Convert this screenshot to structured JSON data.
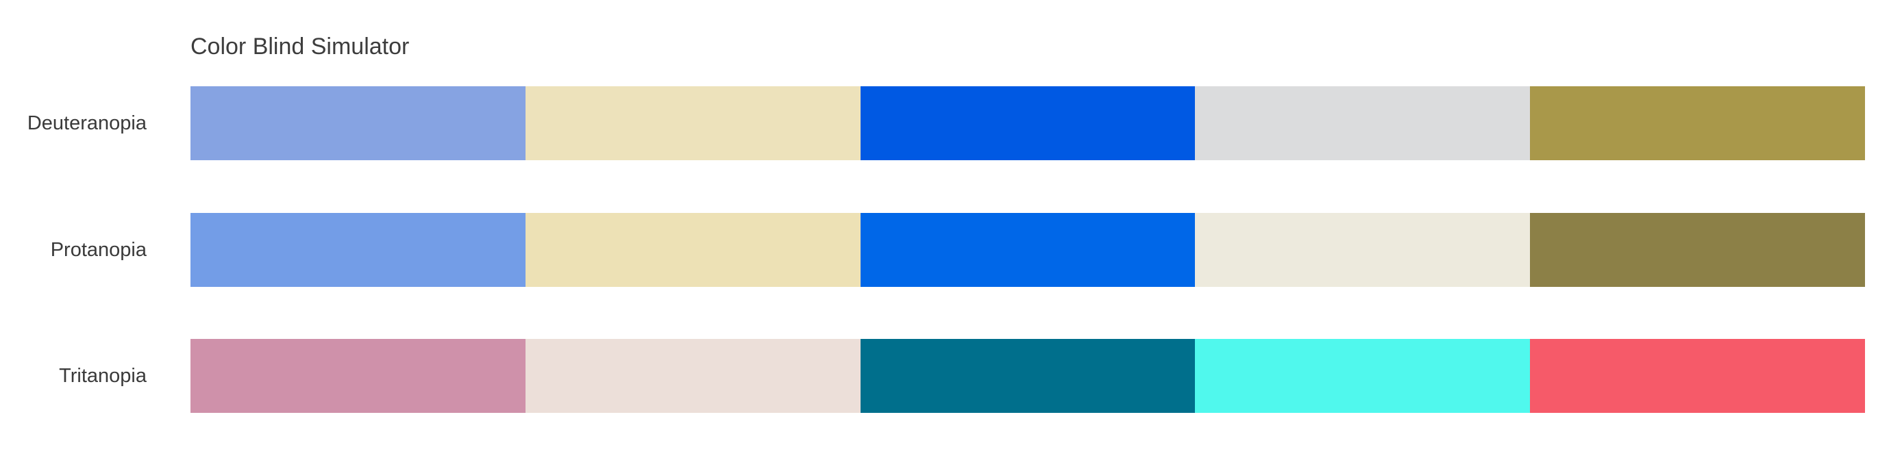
{
  "title": "Color Blind Simulator",
  "rows": [
    {
      "label": "Deuteranopia",
      "colors": [
        "#86a3e2",
        "#ede2bb",
        "#0059e3",
        "#dbdcdd",
        "#a9984a"
      ]
    },
    {
      "label": "Protanopia",
      "colors": [
        "#739de7",
        "#ede1b5",
        "#0067e8",
        "#edeadd",
        "#8c8047"
      ]
    },
    {
      "label": "Tritanopia",
      "colors": [
        "#cf91aa",
        "#ecdfd9",
        "#006f8c",
        "#50f8ed",
        "#f65a69"
      ]
    }
  ]
}
